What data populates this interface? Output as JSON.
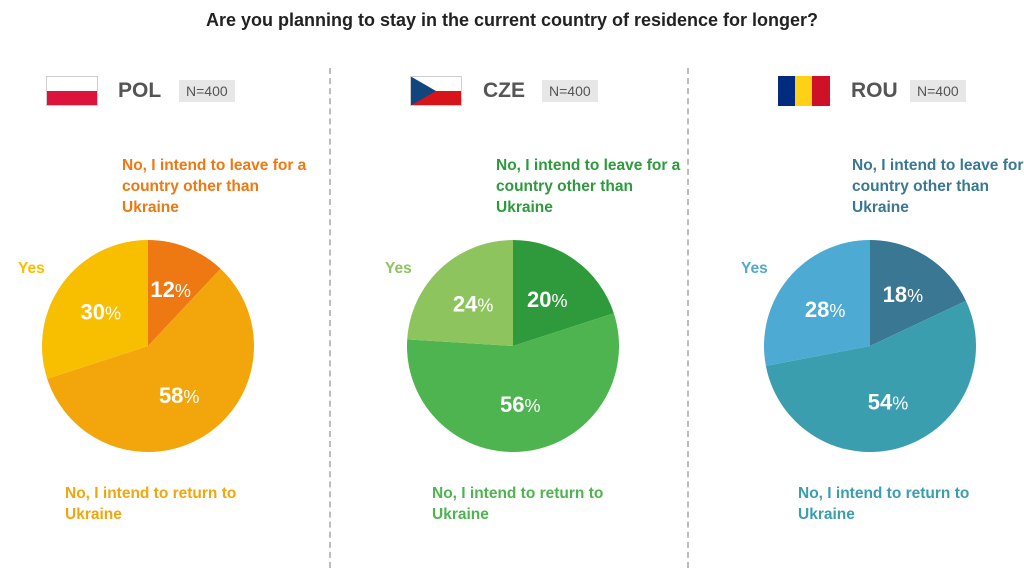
{
  "title": "Are you planning to stay in the current country of residence for longer?",
  "chart_data": [
    {
      "type": "pie",
      "country": "POL",
      "n": "N=400",
      "labels": {
        "leave": "No, I intend to leave for a country other than Ukraine",
        "yes": "Yes",
        "return": "No, I intend to return to Ukraine"
      },
      "slices": [
        {
          "key": "leave",
          "label": "No, I intend to leave for a country other than Ukraine",
          "value": 12,
          "color": "#ee7812"
        },
        {
          "key": "return",
          "label": "No, I intend to return to Ukraine",
          "value": 58,
          "color": "#f2a60c"
        },
        {
          "key": "yes",
          "label": "Yes",
          "value": 30,
          "color": "#f8be00"
        }
      ],
      "label_color": "#ee7812",
      "yes_color": "#f8be00",
      "return_color": "#f2a60c"
    },
    {
      "type": "pie",
      "country": "CZE",
      "n": "N=400",
      "labels": {
        "leave": "No, I intend to leave for a country other than Ukraine",
        "yes": "Yes",
        "return": "No, I intend to return to Ukraine"
      },
      "slices": [
        {
          "key": "leave",
          "label": "No, I intend to leave for a country other than Ukraine",
          "value": 20,
          "color": "#2e9a3c"
        },
        {
          "key": "return",
          "label": "No, I intend to return to Ukraine",
          "value": 56,
          "color": "#4eb44f"
        },
        {
          "key": "yes",
          "label": "Yes",
          "value": 24,
          "color": "#8ec45e"
        }
      ],
      "label_color": "#2e9a3c",
      "yes_color": "#8ec45e",
      "return_color": "#4eb44f"
    },
    {
      "type": "pie",
      "country": "ROU",
      "n": "N=400",
      "labels": {
        "leave": "No, I intend to leave for a country other than Ukraine",
        "yes": "Yes",
        "return": "No, I intend to return to Ukraine"
      },
      "slices": [
        {
          "key": "leave",
          "label": "No, I intend to leave for a country other than Ukraine",
          "value": 18,
          "color": "#3a7793"
        },
        {
          "key": "return",
          "label": "No, I intend to return to Ukraine",
          "value": 54,
          "color": "#3a9eaf"
        },
        {
          "key": "yes",
          "label": "Yes",
          "value": 28,
          "color": "#4daad2"
        }
      ],
      "label_color": "#3a7793",
      "yes_color": "#4daad2",
      "return_color": "#3a9eaf"
    }
  ]
}
